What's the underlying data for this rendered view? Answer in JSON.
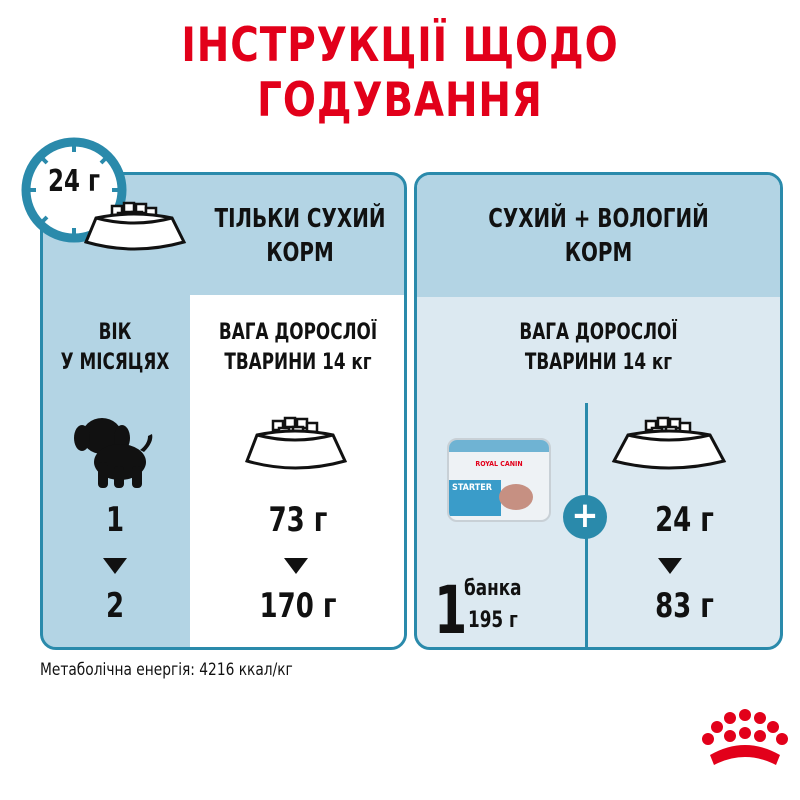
{
  "title": "ІНСТРУКЦІЇ ЩОДО ГОДУВАННЯ",
  "clock_badge": "24 г",
  "dry_panel": {
    "title_line1": "ТІЛЬКИ СУХИЙ",
    "title_line2": "КОРМ",
    "age_label_line1": "ВІК",
    "age_label_line2": "У МІСЯЦЯХ",
    "weight_line1": "ВАГА ДОРОСЛОЇ",
    "weight_line2": "ТВАРИНИ 14 кг",
    "age_from": "1",
    "age_to": "2",
    "amount_from": "73 г",
    "amount_to": "170 г"
  },
  "mixed_panel": {
    "title_line1": "СУХИЙ + ВОЛОГИЙ",
    "title_line2": "КОРМ",
    "weight_line1": "ВАГА ДОРОСЛОЇ",
    "weight_line2": "ТВАРИНИ 14 кг",
    "can_count": "1",
    "can_unit": "банка",
    "can_weight": "195 г",
    "can_brand": "ROYAL CANIN",
    "can_product": "STARTER",
    "dry_from": "24 г",
    "dry_to": "83 г"
  },
  "footer": "Метаболічна енергія: 4216 ккал/кг",
  "colors": {
    "accent_red": "#e2001a",
    "frame_blue": "#2a8aab",
    "light_blue": "#b3d4e4",
    "pale_blue": "#dce9f1"
  }
}
